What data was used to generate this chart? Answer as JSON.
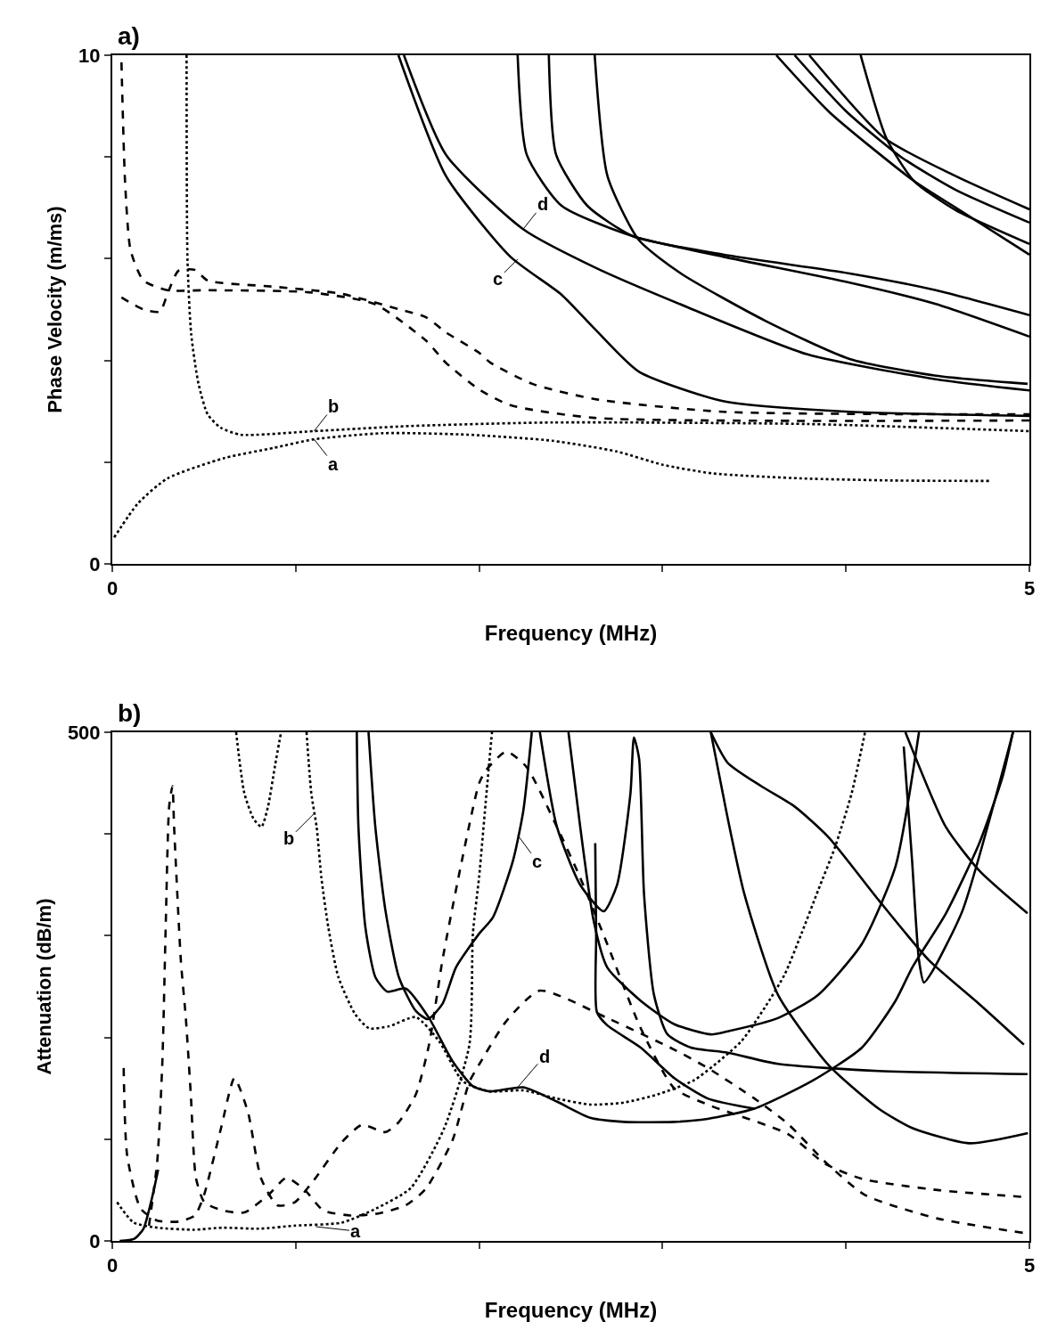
{
  "chart_data": [
    {
      "type": "line",
      "title": "a)",
      "xlabel": "Frequency (MHz)",
      "ylabel": "Phase Velocity (m/ms)",
      "xlim": [
        0,
        5
      ],
      "xticks": [
        0,
        {
          "value": 1,
          "label": null
        },
        {
          "value": 2,
          "label": null
        },
        {
          "value": 3,
          "label": null
        },
        {
          "value": 4,
          "label": null
        },
        5
      ],
      "ylim": [
        0,
        10
      ],
      "yticks": [
        0,
        {
          "value": 2,
          "label": null
        },
        {
          "value": 4,
          "label": null
        },
        {
          "value": 6,
          "label": null
        },
        {
          "value": 8,
          "label": null
        },
        10
      ],
      "grid": false,
      "marker": "none",
      "annotations": [
        {
          "text": "b",
          "x": 1.1,
          "y": 2.61
        },
        {
          "text": "a",
          "x": 1.1,
          "y": 2.45
        },
        {
          "text": "c",
          "x": 2.21,
          "y": 5.99
        },
        {
          "text": "d",
          "x": 2.24,
          "y": 6.58
        }
      ],
      "series": [
        {
          "color": "#000000",
          "line_style": "dotted",
          "x": [
            0.01,
            0.14,
            0.3,
            0.61,
            0.88,
            1.1,
            1.48,
            1.94,
            2.4,
            2.75,
            3.0,
            3.27,
            3.76,
            4.25,
            4.79
          ],
          "values": [
            0.52,
            1.19,
            1.68,
            2.08,
            2.28,
            2.45,
            2.57,
            2.54,
            2.42,
            2.21,
            1.95,
            1.78,
            1.68,
            1.64,
            1.63
          ]
        },
        {
          "color": "#000000",
          "line_style": "dotted",
          "x": [
            0.405,
            0.41,
            0.43,
            0.47,
            0.52,
            0.59,
            0.7,
            1.1,
            1.62,
            2.4,
            3.79,
            5
          ],
          "values": [
            10,
            5.97,
            4.52,
            3.54,
            2.94,
            2.68,
            2.54,
            2.61,
            2.71,
            2.78,
            2.75,
            2.61
          ]
        },
        {
          "color": "#000000",
          "line_style": "dashed",
          "x": [
            0.05,
            0.17,
            0.26,
            0.3,
            0.36,
            0.45,
            0.52,
            0.88,
            1.25,
            1.56,
            1.71,
            1.82,
            2.0,
            2.06,
            2.29,
            2.63,
            3.33,
            5
          ],
          "values": [
            5.24,
            5.0,
            4.96,
            5.3,
            5.76,
            5.78,
            5.57,
            5.45,
            5.31,
            5.01,
            4.85,
            4.55,
            4.15,
            3.96,
            3.54,
            3.24,
            2.99,
            2.94
          ]
        },
        {
          "color": "#000000",
          "line_style": "dashed",
          "x": [
            0.05,
            0.07,
            0.1,
            0.17,
            0.3,
            0.52,
            1.07,
            1.43,
            1.71,
            1.82,
            2.0,
            2.17,
            2.63,
            5
          ],
          "values": [
            9.86,
            7.48,
            6.16,
            5.57,
            5.38,
            5.38,
            5.34,
            5.11,
            4.39,
            3.95,
            3.43,
            3.12,
            2.87,
            2.82
          ]
        },
        {
          "color": "#000000",
          "line_style": "solid",
          "x": [
            1.56,
            1.82,
            2.17,
            2.45,
            2.63,
            2.87,
            3.33,
            4.02,
            5
          ],
          "values": [
            10,
            7.62,
            6.04,
            5.29,
            4.62,
            3.78,
            3.2,
            2.99,
            2.91
          ]
        },
        {
          "color": "#000000",
          "line_style": "solid",
          "x": [
            1.59,
            1.82,
            2.24,
            2.63,
            3.14,
            3.79,
            4.49,
            5
          ],
          "values": [
            10,
            8.04,
            6.58,
            5.83,
            5.04,
            4.12,
            3.63,
            3.41
          ]
        },
        {
          "color": "#000000",
          "line_style": "solid",
          "x": [
            2.21,
            2.26,
            2.45,
            2.84,
            3.33,
            4.02,
            4.49,
            5
          ],
          "values": [
            10,
            8.04,
            7.04,
            6.44,
            6.04,
            5.53,
            5.11,
            4.47
          ]
        },
        {
          "color": "#000000",
          "line_style": "solid",
          "x": [
            2.38,
            2.42,
            2.59,
            2.84,
            3.33,
            4.02,
            4.49,
            5
          ],
          "values": [
            10,
            8.04,
            7.04,
            6.44,
            6.08,
            5.71,
            5.38,
            4.89
          ]
        },
        {
          "color": "#000000",
          "line_style": "solid",
          "x": [
            2.63,
            2.7,
            2.87,
            3.1,
            3.56,
            4.02,
            4.49,
            4.99
          ],
          "values": [
            10,
            7.62,
            6.37,
            5.71,
            4.78,
            4.03,
            3.7,
            3.54
          ]
        },
        {
          "color": "#000000",
          "line_style": "solid",
          "x": [
            3.62,
            3.91,
            4.37,
            4.6,
            5
          ],
          "values": [
            10,
            8.88,
            7.53,
            7.0,
            6.08
          ]
        },
        {
          "color": "#000000",
          "line_style": "solid",
          "x": [
            3.8,
            4.21,
            4.6,
            5
          ],
          "values": [
            10,
            8.37,
            7.62,
            6.97
          ]
        },
        {
          "color": "#000000",
          "line_style": "solid",
          "x": [
            4.08,
            4.22,
            4.37,
            4.6,
            5
          ],
          "values": [
            10,
            8.37,
            7.53,
            6.95,
            6.29
          ]
        },
        {
          "color": "#000000",
          "line_style": "solid",
          "x": [
            3.72,
            4.0,
            4.3,
            4.6,
            5
          ],
          "values": [
            10,
            8.9,
            8.0,
            7.35,
            6.71
          ]
        }
      ]
    },
    {
      "type": "line",
      "title": "b)",
      "xlabel": "Frequency (MHz)",
      "ylabel": "Attenuation (dB/m)",
      "xlim": [
        0,
        5
      ],
      "xticks": [
        0,
        {
          "value": 1,
          "label": null
        },
        {
          "value": 2,
          "label": null
        },
        {
          "value": 3,
          "label": null
        },
        {
          "value": 4,
          "label": null
        },
        5
      ],
      "ylim": [
        0,
        500
      ],
      "yticks": [
        0,
        {
          "value": 100,
          "label": null
        },
        {
          "value": 200,
          "label": null
        },
        {
          "value": 300,
          "label": null
        },
        {
          "value": 400,
          "label": null
        },
        500
      ],
      "grid": false,
      "marker": "none",
      "annotations": [
        {
          "text": "b",
          "x": 1.1,
          "y": 420
        },
        {
          "text": "c",
          "x": 2.21,
          "y": 399
        },
        {
          "text": "a",
          "x": 1.11,
          "y": 14
        },
        {
          "text": "d",
          "x": 2.21,
          "y": 151
        }
      ],
      "series": [
        {
          "color": "#000000",
          "line_style": "dotted",
          "x": [
            0.026,
            0.117,
            0.245,
            0.447,
            0.6,
            0.8,
            0.995,
            1.251,
            1.44,
            1.627,
            1.81,
            1.947,
            1.966,
            2.0,
            2.04,
            2.07
          ],
          "values": [
            38,
            18,
            13,
            11,
            13,
            12,
            15,
            18,
            32,
            52,
            111,
            193,
            302,
            358,
            440,
            500
          ]
        },
        {
          "color": "#000000",
          "line_style": "dotted",
          "x": [
            1.059,
            1.085,
            1.114,
            1.14,
            1.178,
            1.233,
            1.324,
            1.4,
            1.509,
            1.655,
            1.783,
            1.911,
            2.058,
            2.241,
            2.423,
            2.606,
            2.789,
            2.972,
            3.172,
            3.428,
            3.556,
            3.666,
            3.757,
            3.849,
            3.94,
            4.031,
            4.104
          ],
          "values": [
            500,
            440,
            407,
            357,
            308,
            259,
            223,
            209,
            211,
            220,
            196,
            157,
            147,
            148,
            140,
            134,
            136,
            144,
            158,
            196,
            229,
            262,
            302,
            345,
            387,
            440,
            500
          ]
        },
        {
          "color": "#000000",
          "line_style": "dotted",
          "x": [
            0.675,
            0.72,
            0.77,
            0.813,
            0.849,
            0.887,
            0.92
          ],
          "values": [
            500,
            440,
            415,
            407,
            427,
            467,
            500
          ]
        },
        {
          "color": "#000000",
          "line_style": "dashed",
          "x": [
            0.2,
            0.245,
            0.273,
            0.291,
            0.31,
            0.328,
            0.337,
            0.374,
            0.401,
            0.428,
            0.456,
            0.502,
            0.6,
            0.72,
            0.85,
            0.95,
            1.05,
            1.15,
            1.3,
            1.45,
            1.6,
            1.708,
            1.855,
            1.946,
            2.002,
            2.148,
            2.331,
            2.7,
            3.064,
            3.246,
            3.501,
            3.684,
            3.885,
            4.105,
            4.5,
            4.964
          ],
          "values": [
            15,
            78,
            176,
            308,
            427,
            447,
            407,
            275,
            219,
            144,
            62,
            38,
            30,
            28,
            45,
            62,
            50,
            30,
            25,
            27,
            35,
            51,
            99,
            156,
            174,
            216,
            246,
            219,
            188,
            170,
            140,
            115,
            78,
            45,
            22,
            8
          ]
        },
        {
          "color": "#000000",
          "line_style": "dashed",
          "x": [
            0.062,
            0.081,
            0.154,
            0.245,
            0.364,
            0.45,
            0.5,
            0.593,
            0.666,
            0.739,
            0.812,
            0.9,
            0.995,
            1.1,
            1.251,
            1.36,
            1.49,
            1.563,
            1.655,
            1.727,
            1.8,
            1.896,
            2.0,
            2.039,
            2.148,
            2.258,
            2.424,
            2.551,
            2.698,
            2.881,
            3.064,
            3.246,
            3.684,
            3.885,
            4.087,
            4.5,
            4.983
          ],
          "values": [
            170,
            84,
            32,
            20,
            19,
            25,
            45,
            111,
            160,
            127,
            61,
            35,
            38,
            60,
            97,
            114,
            107,
            117,
            144,
            193,
            276,
            365,
            450,
            463,
            481,
            466,
            407,
            357,
            292,
            209,
            150,
            134,
            105,
            76,
            61,
            50,
            43
          ]
        },
        {
          "color": "#000000",
          "line_style": "solid",
          "x": [
            0.04,
            0.12,
            0.17,
            0.22,
            0.25
          ],
          "values": [
            0,
            2,
            12,
            45,
            70
          ]
        },
        {
          "color": "#000000",
          "line_style": "solid",
          "x": [
            1.333,
            1.342,
            1.38,
            1.435,
            1.5,
            1.6,
            1.727,
            1.854,
            1.966,
            2.058,
            2.241,
            2.423,
            2.606,
            2.789,
            3.064,
            3.246,
            3.501,
            3.813,
            4.087,
            4.27,
            4.362,
            4.545,
            4.727,
            4.855,
            4.91
          ],
          "values": [
            500,
            407,
            308,
            259,
            245,
            248,
            219,
            177,
            152,
            147,
            151,
            137,
            121,
            117,
            117,
            120,
            130,
            157,
            190,
            236,
            269,
            322,
            391,
            457,
            500
          ]
        },
        {
          "color": "#000000",
          "line_style": "solid",
          "x": [
            1.397,
            1.434,
            1.489,
            1.563,
            1.655,
            1.72,
            1.8,
            1.874,
            2.0,
            2.075,
            2.185,
            2.241,
            2.287
          ],
          "values": [
            500,
            407,
            325,
            259,
            226,
            218,
            233,
            269,
            302,
            318,
            374,
            423,
            500
          ]
        },
        {
          "color": "#000000",
          "line_style": "solid",
          "x": [
            2.331,
            2.424,
            2.551,
            2.679,
            2.752,
            2.825,
            2.844,
            2.872,
            2.899,
            2.953,
            3.027,
            3.155,
            3.355,
            3.629,
            4.178,
            4.99
          ],
          "values": [
            500,
            407,
            350,
            324,
            350,
            440,
            495,
            474,
            341,
            242,
            203,
            190,
            185,
            174,
            167,
            164
          ]
        },
        {
          "color": "#000000",
          "line_style": "solid",
          "x": [
            2.487,
            2.551,
            2.624,
            2.698,
            2.881,
            3.064,
            3.265,
            3.355,
            3.629,
            3.849,
            4.087,
            4.27,
            4.398
          ],
          "values": [
            500,
            407,
            315,
            269,
            236,
            213,
            203,
            206,
            219,
            242,
            292,
            368,
            500
          ]
        },
        {
          "color": "#000000",
          "line_style": "solid",
          "x": [
            2.633,
            2.638,
            2.642,
            2.698,
            2.881,
            3.064,
            3.246,
            3.5
          ],
          "values": [
            391,
            300,
            225,
            212,
            190,
            160,
            140,
            130
          ]
        },
        {
          "color": "#000000",
          "line_style": "solid",
          "x": [
            4.315,
            4.36,
            4.398,
            4.425,
            4.471,
            4.636,
            4.911
          ],
          "values": [
            486,
            375,
            276,
            254,
            265,
            325,
            500
          ]
        },
        {
          "color": "#000000",
          "line_style": "solid",
          "x": [
            3.263,
            3.355,
            3.538,
            3.72,
            3.904,
            4.178,
            4.452,
            4.726,
            4.97
          ],
          "values": [
            500,
            470,
            447,
            427,
            397,
            335,
            276,
            233,
            193
          ]
        },
        {
          "color": "#000000",
          "line_style": "solid",
          "x": [
            3.263,
            3.35,
            3.446,
            3.629,
            3.904,
            4.178,
            4.361,
            4.672,
            4.992
          ],
          "values": [
            500,
            420,
            341,
            242,
            173,
            130,
            111,
            96,
            106
          ]
        },
        {
          "color": "#000000",
          "line_style": "solid",
          "x": [
            4.324,
            4.544,
            4.727,
            4.99
          ],
          "values": [
            500,
            407,
            364,
            322
          ]
        }
      ]
    }
  ]
}
